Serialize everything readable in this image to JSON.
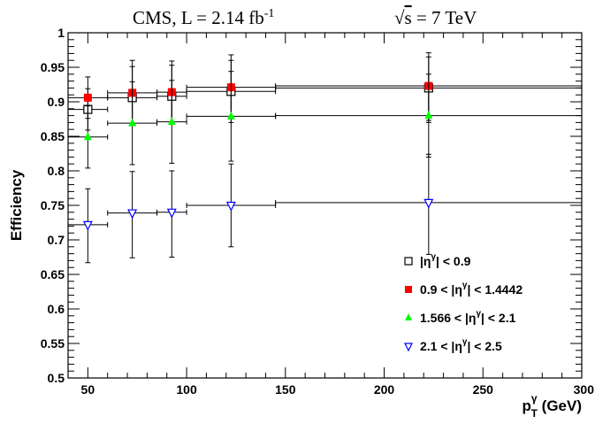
{
  "header": {
    "experiment": "CMS, L = 2.14 fb",
    "lumi_exponent": "-1",
    "energy_prefix": "√",
    "energy_var": "s",
    "energy_value": " = 7 TeV"
  },
  "chart_data": {
    "type": "scatter",
    "xlabel": {
      "main": "p",
      "sub": "T",
      "sup": "γ",
      "unit": " (GeV)"
    },
    "ylabel": "Efficiency",
    "xlim": [
      40,
      300
    ],
    "ylim": [
      0.5,
      1.0
    ],
    "x_ticks": [
      50,
      100,
      150,
      200,
      250,
      300
    ],
    "y_ticks": [
      0.5,
      0.55,
      0.6,
      0.65,
      0.7,
      0.75,
      0.8,
      0.85,
      0.9,
      0.95,
      1.0
    ],
    "y_tick_labels": [
      "0.5",
      "0.55",
      "0.6",
      "0.65",
      "0.7",
      "0.75",
      "0.8",
      "0.85",
      "0.9",
      "0.95",
      "1"
    ],
    "x_tick_labels": [
      "50",
      "100",
      "150",
      "200",
      "250",
      "300"
    ],
    "bins": [
      [
        40,
        60
      ],
      [
        60,
        85
      ],
      [
        85,
        100
      ],
      [
        100,
        145
      ],
      [
        145,
        300
      ]
    ],
    "x": [
      50,
      72.5,
      92.5,
      122.5,
      222.5
    ],
    "legend_position": "bottom-right",
    "series": [
      {
        "name": "|η^γ| < 0.9",
        "label_parts": {
          "pre": "|η",
          "sup": "γ",
          "post": "| < 0.9"
        },
        "marker": "open-square",
        "color": "#000000",
        "values": [
          0.889,
          0.906,
          0.908,
          0.915,
          0.92
        ],
        "err_low": [
          0.03,
          0.04,
          0.04,
          0.045,
          0.05
        ],
        "err_high": [
          0.03,
          0.045,
          0.045,
          0.045,
          0.045
        ]
      },
      {
        "name": "0.9 < |η^γ| < 1.4442",
        "label_parts": {
          "pre": "0.9 < |η",
          "sup": "γ",
          "post": "| < 1.4442"
        },
        "marker": "filled-square",
        "color": "#ff0000",
        "values": [
          0.906,
          0.913,
          0.914,
          0.921,
          0.923
        ],
        "err_low": [
          0.03,
          0.045,
          0.045,
          0.045,
          0.05
        ],
        "err_high": [
          0.03,
          0.047,
          0.045,
          0.047,
          0.048
        ]
      },
      {
        "name": "1.566 < |η^γ| < 2.1",
        "label_parts": {
          "pre": "1.566 < |η",
          "sup": "γ",
          "post": "| < 2.1"
        },
        "marker": "filled-triangle-up",
        "color": "#00ff00",
        "values": [
          0.849,
          0.869,
          0.871,
          0.879,
          0.88
        ],
        "err_low": [
          0.045,
          0.06,
          0.06,
          0.065,
          0.06
        ],
        "err_high": [
          0.045,
          0.06,
          0.06,
          0.065,
          0.06
        ]
      },
      {
        "name": "2.1 < |η^γ| < 2.5",
        "label_parts": {
          "pre": "2.1 < |η",
          "sup": "γ",
          "post": "| < 2.5"
        },
        "marker": "open-triangle-down",
        "color": "#0000ff",
        "values": [
          0.722,
          0.739,
          0.74,
          0.75,
          0.754
        ],
        "err_low": [
          0.055,
          0.065,
          0.065,
          0.06,
          0.075
        ],
        "err_high": [
          0.052,
          0.06,
          0.06,
          0.06,
          0.07
        ]
      }
    ]
  }
}
